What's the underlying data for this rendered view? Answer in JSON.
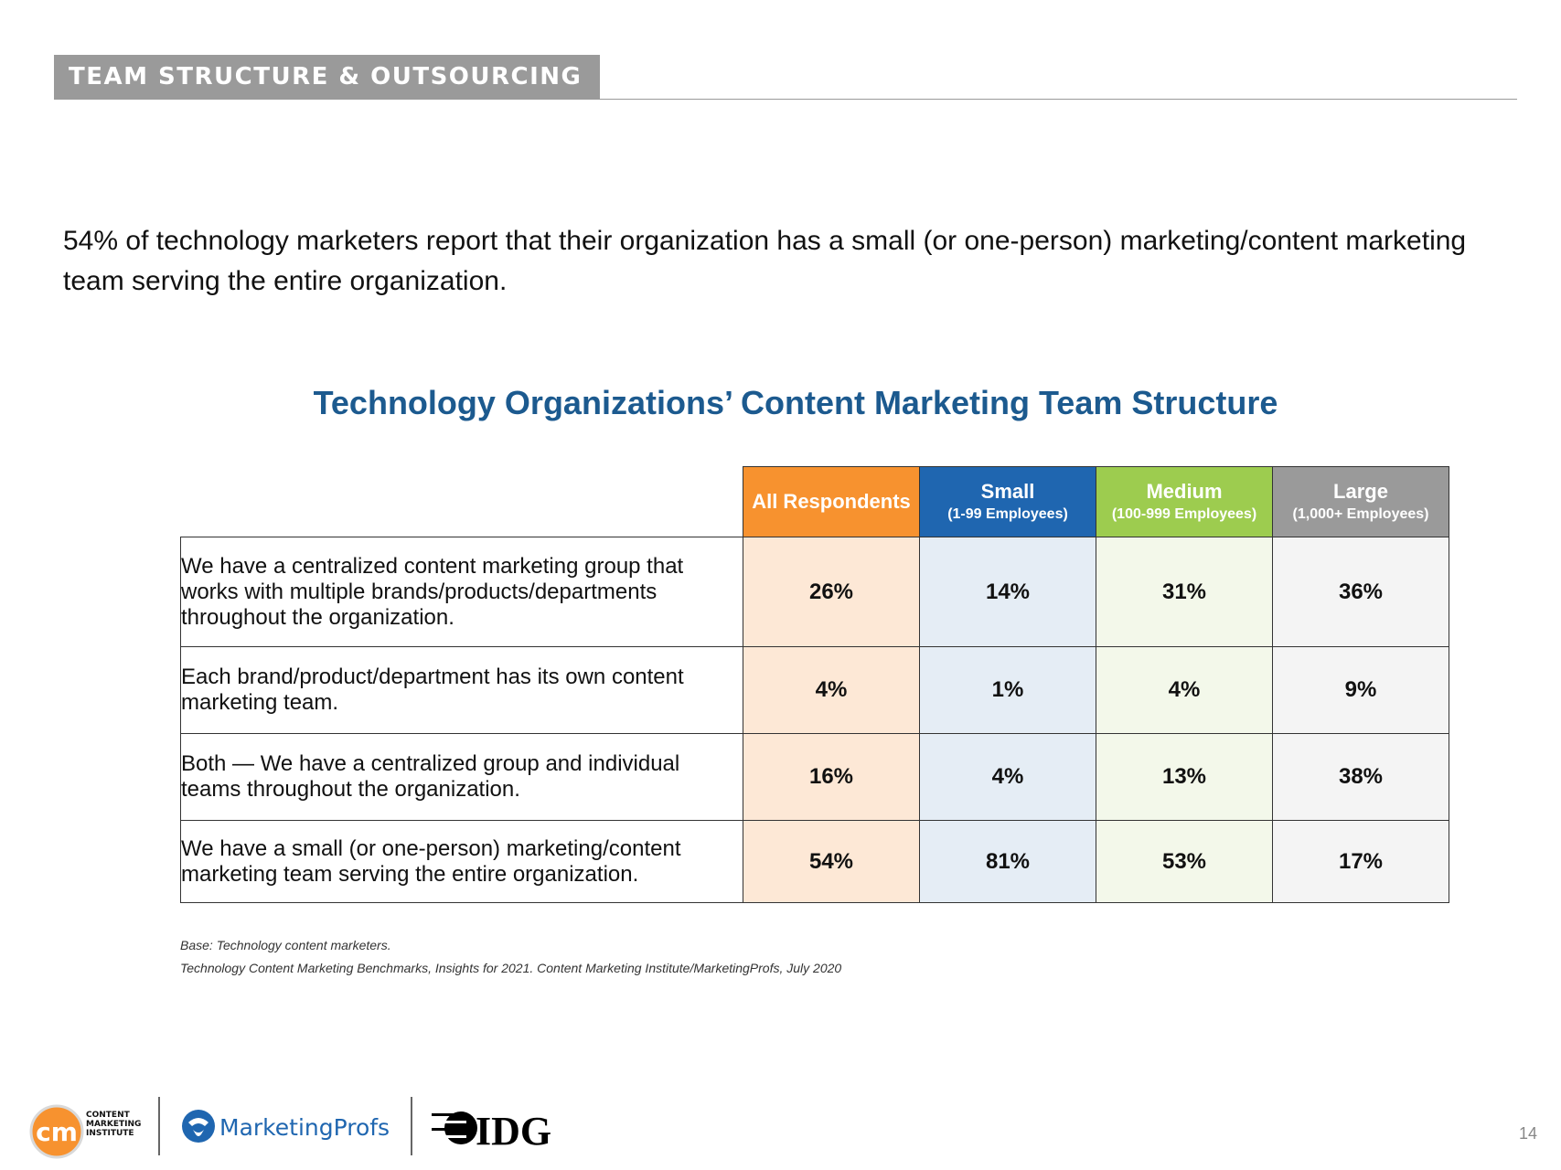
{
  "section": {
    "label": "TEAM STRUCTURE & OUTSOURCING"
  },
  "intro": "54% of technology marketers report that their organization has a small (or one-person) marketing/content marketing team serving the entire organization.",
  "chart_data": {
    "type": "table",
    "title": "Technology Organizations’ Content Marketing Team Structure",
    "columns": [
      {
        "name": "All Respondents",
        "sub": "",
        "color": "#f7922f"
      },
      {
        "name": "Small",
        "sub": "(1-99 Employees)",
        "color": "#1f66b0"
      },
      {
        "name": "Medium",
        "sub": "(100-999 Employees)",
        "color": "#9dcc4f"
      },
      {
        "name": "Large",
        "sub": "(1,000+ Employees)",
        "color": "#9a9a9a"
      }
    ],
    "rows": [
      {
        "label": "We have a centralized content marketing group that works with multiple brands/products/departments throughout the organization.",
        "values": [
          "26%",
          "14%",
          "31%",
          "36%"
        ]
      },
      {
        "label": "Each brand/product/department has its own content marketing team.",
        "values": [
          "4%",
          "1%",
          "4%",
          "9%"
        ]
      },
      {
        "label": "Both — We have a centralized group and individual teams throughout the organization.",
        "values": [
          "16%",
          "4%",
          "13%",
          "38%"
        ]
      },
      {
        "label": "We have a small (or one-person) marketing/content marketing team serving the entire organization.",
        "values": [
          "54%",
          "81%",
          "53%",
          "17%"
        ]
      }
    ]
  },
  "notes": {
    "base": "Base: Technology content marketers.",
    "source": "Technology Content Marketing Benchmarks, Insights for 2021. Content Marketing Institute/MarketingProfs, July 2020"
  },
  "logos": {
    "cmi_initials": "cm",
    "cmi_line1": "CONTENT",
    "cmi_line2": "MARKETING",
    "cmi_line3": "INSTITUTE",
    "mprofs": "MarketingProfs",
    "idg": "IDG"
  },
  "page_number": "14"
}
